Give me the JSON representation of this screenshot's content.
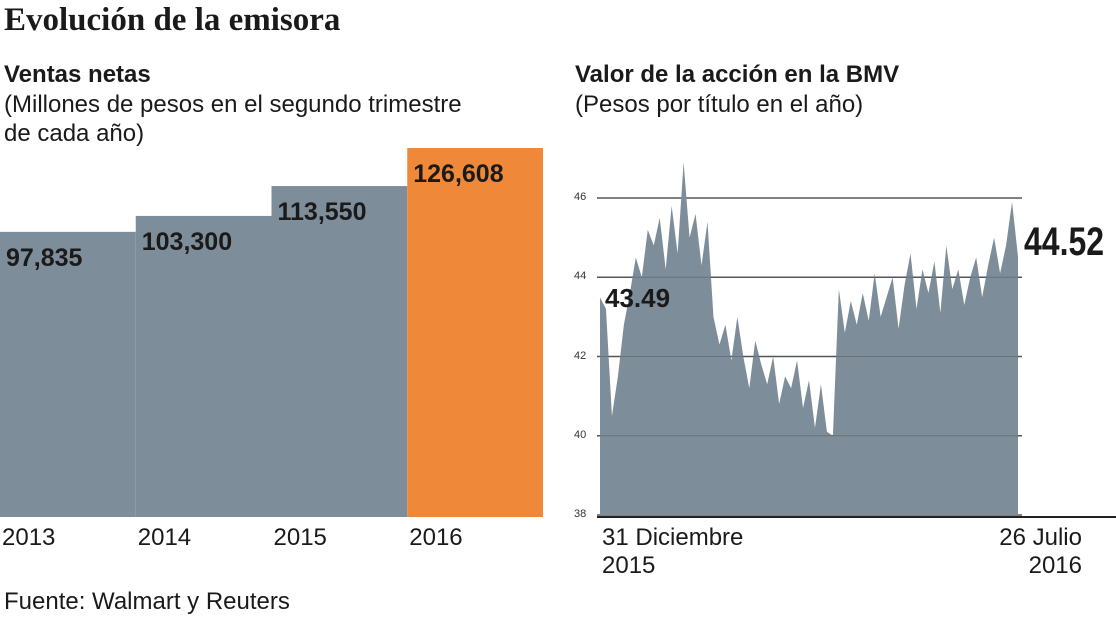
{
  "title": "Evolución de la emisora",
  "source": "Fuente: Walmart y Reuters",
  "chart_data": [
    {
      "type": "bar",
      "title": "Ventas netas",
      "subtitle": "(Millones de pesos en el segundo trimestre de cada año)",
      "categories": [
        "2013",
        "2014",
        "2015",
        "2016"
      ],
      "values": [
        97835,
        103300,
        113550,
        126608
      ],
      "value_labels": [
        "97,835",
        "103,300",
        "113,550",
        "126,608"
      ],
      "colors": [
        "#7d8d99",
        "#7d8d99",
        "#7d8d99",
        "#f0883a"
      ]
    },
    {
      "type": "area",
      "title": "Valor de la acción en la BMV",
      "subtitle": "(Pesos por título en el año)",
      "categories": [
        "31 Diciembre\n2015",
        null,
        null,
        null,
        null,
        null,
        null,
        null,
        null,
        null,
        null,
        null,
        null,
        null,
        null,
        null,
        null,
        null,
        null,
        null,
        null,
        null,
        null,
        null,
        null,
        null,
        null,
        null,
        null,
        null,
        null,
        null,
        null,
        null,
        null,
        null,
        null,
        null,
        null,
        null,
        null,
        null,
        null,
        null,
        null,
        null,
        null,
        null,
        null,
        null,
        null,
        null,
        null,
        null,
        null,
        null,
        null,
        null,
        null,
        null,
        null,
        null,
        null,
        null,
        null,
        null,
        null,
        null,
        null,
        null,
        "26 Julio\n2016"
      ],
      "series": [
        {
          "color": "#7d8d99",
          "values": [
            43.49,
            43.2,
            40.5,
            41.5,
            42.8,
            43.6,
            44.5,
            44.0,
            45.2,
            44.8,
            45.5,
            44.2,
            45.8,
            44.6,
            46.9,
            45.0,
            45.6,
            44.3,
            45.4,
            43.0,
            42.3,
            42.8,
            41.9,
            43.0,
            42.0,
            41.2,
            42.4,
            41.8,
            41.3,
            42.0,
            40.8,
            41.5,
            41.2,
            41.9,
            40.7,
            41.4,
            40.2,
            41.3,
            40.1,
            40.0,
            43.7,
            42.6,
            43.4,
            42.8,
            43.6,
            42.9,
            44.1,
            43.0,
            43.5,
            44.0,
            42.7,
            43.8,
            44.6,
            43.2,
            44.2,
            43.6,
            44.4,
            43.1,
            44.8,
            43.7,
            44.2,
            43.3,
            44.0,
            44.5,
            43.5,
            44.3,
            45.0,
            44.1,
            44.8,
            45.9,
            44.52
          ]
        }
      ],
      "ylim": [
        38,
        46
      ],
      "yticks": [
        38,
        40,
        42,
        44,
        46
      ],
      "grid": true
    }
  ]
}
